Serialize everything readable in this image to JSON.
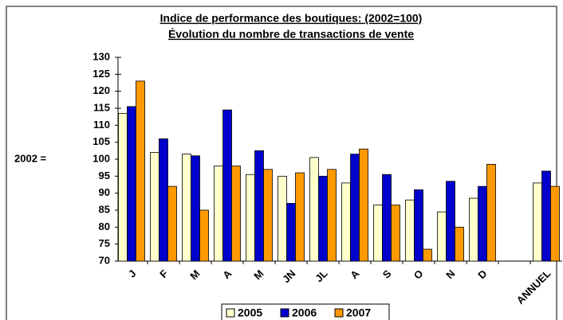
{
  "chart_data": {
    "type": "bar",
    "title": "Indice de performance des boutiques: (2002=100)",
    "subtitle": "Évolution du nombre de transactions de vente",
    "y_label": "2002 =",
    "categories": [
      "J",
      "F",
      "M",
      "A",
      "M",
      "JN",
      "JL",
      "A",
      "S",
      "O",
      "N",
      "D",
      null,
      "ANNUEL"
    ],
    "series": [
      {
        "name": "2005",
        "color": "#ffffcc",
        "values": [
          113.5,
          102,
          101.5,
          98,
          95.5,
          95,
          100.5,
          93,
          86.5,
          88,
          84.5,
          88.5,
          null,
          93
        ]
      },
      {
        "name": "2006",
        "color": "#0000cc",
        "values": [
          115.5,
          106,
          101,
          114.5,
          102.5,
          87,
          95,
          101.5,
          95.5,
          91,
          93.5,
          92,
          null,
          96.5
        ]
      },
      {
        "name": "2007",
        "color": "#ff9900",
        "values": [
          123,
          92,
          85,
          98,
          97,
          96,
          97,
          103,
          86.5,
          73.5,
          80,
          98.5,
          null,
          92
        ]
      }
    ],
    "ylim": [
      70,
      130
    ],
    "yticks": [
      70,
      75,
      80,
      85,
      90,
      95,
      100,
      105,
      110,
      115,
      120,
      125,
      130
    ],
    "grid": false,
    "legend": "bottom"
  }
}
